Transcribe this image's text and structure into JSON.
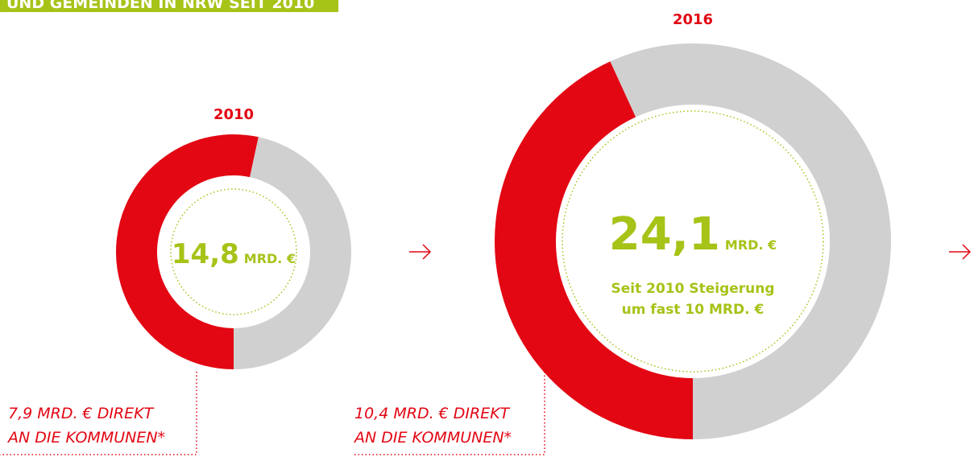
{
  "header": "UND GEMEINDEN IN NRW SEIT 2010",
  "chart_data": [
    {
      "type": "donut",
      "title": "2010",
      "total": 14.8,
      "total_label": "14,8",
      "unit": "MRD. €",
      "values": [
        7.9
      ],
      "value_labels": [
        "7,9 MRD. € DIREKT"
      ],
      "annotation": "AN DIE KOMMUNEN*",
      "colors": [
        "#e30613",
        "#d0d0d0"
      ]
    },
    {
      "type": "donut",
      "title": "2016",
      "total": 24.1,
      "total_label": "24,1",
      "unit": "MRD. €",
      "values": [
        10.4
      ],
      "value_labels": [
        "10,4 MRD. € DIREKT"
      ],
      "annotation": "AN DIE KOMMUNEN*",
      "subtitle": [
        "Seit 2010 Steigerung",
        "um fast 10 MRD. €"
      ],
      "colors": [
        "#e30613",
        "#d0d0d0"
      ]
    }
  ]
}
